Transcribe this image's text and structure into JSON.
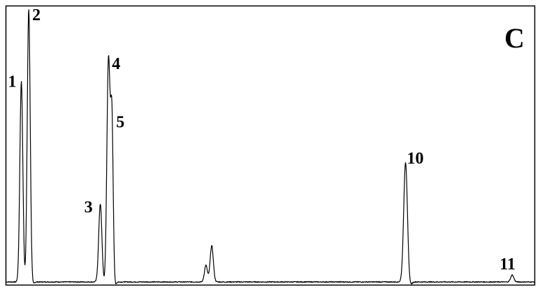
{
  "chart_data": {
    "type": "line",
    "panel_label": "C",
    "title": "",
    "xlabel": "",
    "ylabel": "",
    "xlim": [
      0,
      100
    ],
    "ylim": [
      0,
      100
    ],
    "grid": false,
    "line_color": "#000000",
    "baseline": 1,
    "peaks": [
      {
        "label": "1",
        "x": 2.85,
        "y": 72.0,
        "width": 0.28
      },
      {
        "label": "2",
        "x": 4.25,
        "y": 98.0,
        "width": 0.28
      },
      {
        "label": "3",
        "x": 17.8,
        "y": 28.0,
        "width": 0.3
      },
      {
        "label": "4",
        "x": 19.35,
        "y": 80.0,
        "width": 0.3
      },
      {
        "label": "5",
        "x": 20.0,
        "y": 58.0,
        "width": 0.24
      },
      {
        "label": "",
        "x": 37.8,
        "y": 6.0,
        "width": 0.28
      },
      {
        "label": "",
        "x": 38.9,
        "y": 13.0,
        "width": 0.3
      },
      {
        "label": "10",
        "x": 75.6,
        "y": 43.0,
        "width": 0.35
      },
      {
        "label": "11",
        "x": 95.8,
        "y": 2.5,
        "width": 0.3
      }
    ]
  }
}
